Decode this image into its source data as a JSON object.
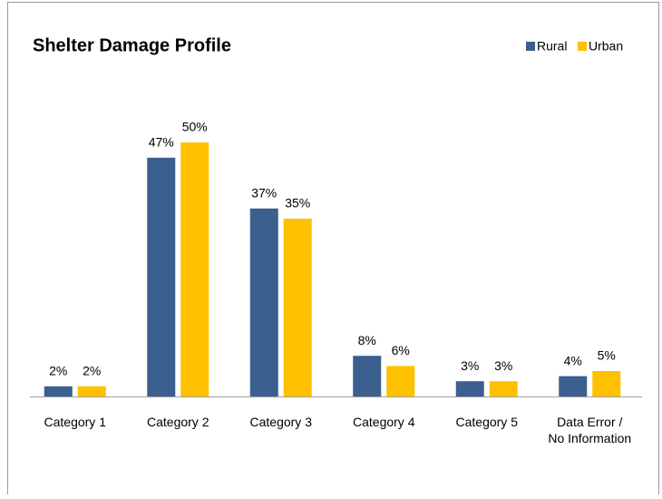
{
  "chart_data": {
    "type": "bar",
    "title": "Shelter Damage Profile",
    "categories": [
      "Category 1",
      "Category 2",
      "Category 3",
      "Category 4",
      "Category 5",
      "Data Error / No Information"
    ],
    "series": [
      {
        "name": "Rural",
        "color": "#3b5f8f",
        "values": [
          2,
          47,
          37,
          8,
          3,
          4
        ],
        "value_labels": [
          "2%",
          "47%",
          "37%",
          "8%",
          "3%",
          "4%"
        ]
      },
      {
        "name": "Urban",
        "color": "#ffc000",
        "values": [
          2,
          50,
          35,
          6,
          3,
          5
        ],
        "value_labels": [
          "2%",
          "50%",
          "35%",
          "6%",
          "3%",
          "5%"
        ]
      }
    ],
    "legend": "top-right"
  }
}
